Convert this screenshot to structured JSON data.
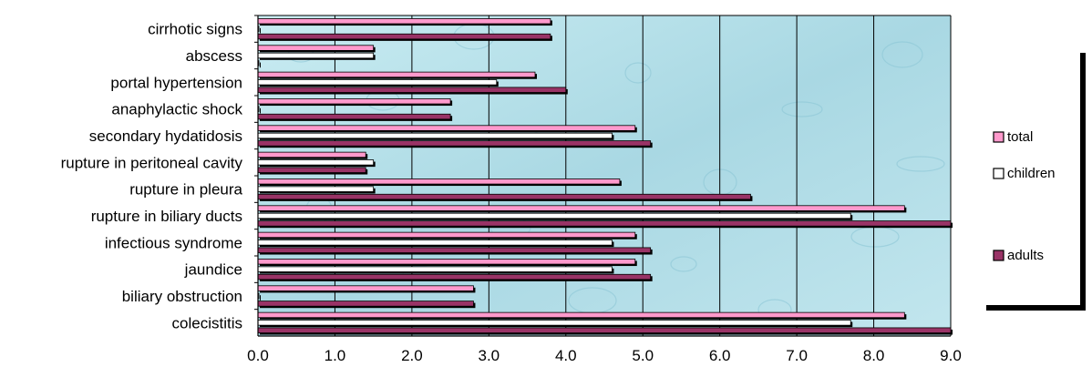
{
  "chart_data": {
    "type": "bar",
    "orientation": "horizontal",
    "categories": [
      "cirrhotic signs",
      "abscess",
      "portal hypertension",
      "anaphylactic shock ",
      "secondary hydatidosis",
      "rupture  in peritoneal cavity",
      "rupture in pleura",
      "rupture in biliary ducts",
      "infectious syndrome ",
      "jaundice",
      "biliary obstruction",
      "colecistitis"
    ],
    "series": [
      {
        "name": "total",
        "color": "#ff99cc",
        "values": [
          3.8,
          1.5,
          3.6,
          2.5,
          4.9,
          1.4,
          4.7,
          8.4,
          4.9,
          4.9,
          2.8,
          8.4
        ]
      },
      {
        "name": "children",
        "color": "#ffffff",
        "values": [
          0.0,
          1.5,
          3.1,
          0.0,
          4.6,
          1.5,
          1.5,
          7.7,
          4.6,
          4.6,
          0.0,
          7.7
        ]
      },
      {
        "name": "adults",
        "color": "#993366",
        "values": [
          3.8,
          0.0,
          4.0,
          2.5,
          5.1,
          1.4,
          6.4,
          9.0,
          5.1,
          5.1,
          2.8,
          9.0
        ]
      }
    ],
    "xlim": [
      0,
      9
    ],
    "xticks": [
      "0.0",
      "1.0",
      "2.0",
      "3.0",
      "4.0",
      "5.0",
      "6.0",
      "7.0",
      "8.0",
      "9.0"
    ],
    "grid": true,
    "legend_position": "right",
    "plot_background": "#b4dfe8"
  }
}
